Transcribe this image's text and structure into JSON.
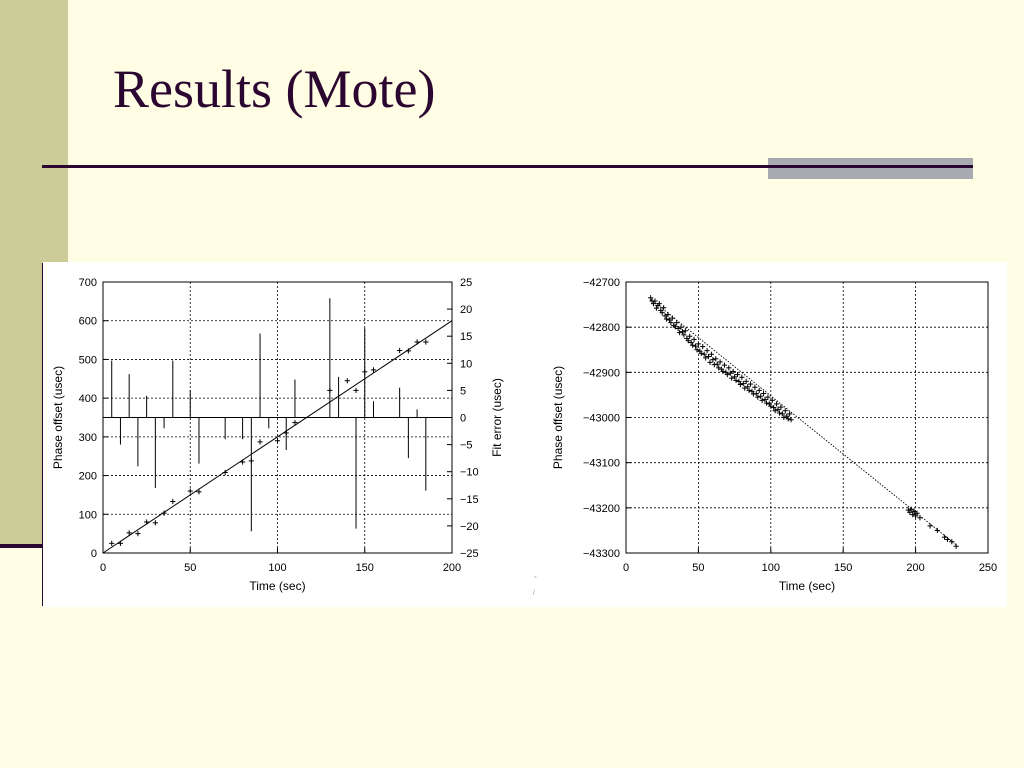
{
  "slide": {
    "title": "Results (Mote)",
    "colors": {
      "background": "#FFFDE3",
      "sidebar": "#CCCC99",
      "title_text": "#2A0630",
      "rule": "#2A0630",
      "accent": "#A9A9B2"
    }
  },
  "chart_data": [
    {
      "type": "scatter",
      "xlabel": "Time (sec)",
      "ylabel": "Phase offset (usec)",
      "y2label": "Fit error (usec)",
      "xlim": [
        0,
        200
      ],
      "ylim": [
        0,
        700
      ],
      "y2lim": [
        -25,
        25
      ],
      "xticks": [
        0,
        50,
        100,
        150,
        200
      ],
      "yticks": [
        0,
        100,
        200,
        300,
        400,
        500,
        600,
        700
      ],
      "y2ticks": [
        -25,
        -20,
        -15,
        -10,
        -5,
        0,
        5,
        10,
        15,
        20,
        25
      ],
      "grid": true,
      "legend": "none",
      "series": [
        {
          "kind": "points",
          "points": [
            [
              5,
              25
            ],
            [
              10,
              25
            ],
            [
              15,
              52
            ],
            [
              20,
              50
            ],
            [
              25,
              80
            ],
            [
              30,
              78
            ],
            [
              35,
              103
            ],
            [
              40,
              133
            ],
            [
              50,
              160
            ],
            [
              55,
              158
            ],
            [
              70,
              208
            ],
            [
              80,
              235
            ],
            [
              85,
              238
            ],
            [
              90,
              287
            ],
            [
              100,
              290
            ],
            [
              105,
              310
            ],
            [
              110,
              337
            ],
            [
              130,
              420
            ],
            [
              140,
              445
            ],
            [
              145,
              420
            ],
            [
              150,
              468
            ],
            [
              155,
              473
            ],
            [
              170,
              523
            ],
            [
              175,
              522
            ],
            [
              180,
              545
            ],
            [
              185,
              545
            ]
          ]
        },
        {
          "kind": "fit-line",
          "points": [
            [
              0,
              0
            ],
            [
              200,
              600
            ]
          ]
        },
        {
          "kind": "error-impulses",
          "axis": "y2",
          "points": [
            [
              5,
              10.5
            ],
            [
              10,
              -5
            ],
            [
              15,
              8
            ],
            [
              20,
              -9
            ],
            [
              25,
              4
            ],
            [
              30,
              -13
            ],
            [
              35,
              -2
            ],
            [
              40,
              10.5
            ],
            [
              50,
              5
            ],
            [
              55,
              -8.5
            ],
            [
              70,
              -4
            ],
            [
              80,
              -4
            ],
            [
              85,
              -21
            ],
            [
              90,
              15.5
            ],
            [
              95,
              -2
            ],
            [
              105,
              -6
            ],
            [
              110,
              7
            ],
            [
              130,
              22
            ],
            [
              135,
              7.5
            ],
            [
              145,
              -20.5
            ],
            [
              150,
              16.5
            ],
            [
              155,
              3
            ],
            [
              170,
              5.5
            ],
            [
              175,
              -7.5
            ],
            [
              180,
              1.5
            ],
            [
              185,
              -13.5
            ]
          ]
        }
      ]
    },
    {
      "type": "scatter",
      "xlabel": "Time (sec)",
      "ylabel": "Phase offset (usec)",
      "xlim": [
        0,
        250
      ],
      "ylim": [
        -43300,
        -42700
      ],
      "xticks": [
        0,
        50,
        100,
        150,
        200,
        250
      ],
      "yticks": [
        -43300,
        -43200,
        -43100,
        -43000,
        -42900,
        -42800,
        -42700
      ],
      "grid": true,
      "legend": "none",
      "series": [
        {
          "kind": "points",
          "points": [
            [
              17,
              -42735
            ],
            [
              18,
              -42742
            ],
            [
              19,
              -42748
            ],
            [
              20,
              -42742
            ],
            [
              21,
              -42758
            ],
            [
              22,
              -42752
            ],
            [
              23,
              -42748
            ],
            [
              24,
              -42763
            ],
            [
              25,
              -42768
            ],
            [
              26,
              -42757
            ],
            [
              27,
              -42775
            ],
            [
              28,
              -42782
            ],
            [
              29,
              -42772
            ],
            [
              30,
              -42784
            ],
            [
              31,
              -42790
            ],
            [
              32,
              -42780
            ],
            [
              33,
              -42796
            ],
            [
              34,
              -42799
            ],
            [
              35,
              -42790
            ],
            [
              36,
              -42803
            ],
            [
              37,
              -42812
            ],
            [
              38,
              -42800
            ],
            [
              39,
              -42810
            ],
            [
              40,
              -42817
            ],
            [
              41,
              -42808
            ],
            [
              42,
              -42825
            ],
            [
              43,
              -42830
            ],
            [
              44,
              -42820
            ],
            [
              45,
              -42834
            ],
            [
              46,
              -42840
            ],
            [
              47,
              -42827
            ],
            [
              48,
              -42842
            ],
            [
              49,
              -42850
            ],
            [
              50,
              -42837
            ],
            [
              51,
              -42853
            ],
            [
              52,
              -42858
            ],
            [
              53,
              -42843
            ],
            [
              54,
              -42860
            ],
            [
              55,
              -42868
            ],
            [
              56,
              -42852
            ],
            [
              57,
              -42865
            ],
            [
              58,
              -42878
            ],
            [
              59,
              -42860
            ],
            [
              60,
              -42872
            ],
            [
              61,
              -42883
            ],
            [
              62,
              -42870
            ],
            [
              63,
              -42882
            ],
            [
              64,
              -42890
            ],
            [
              65,
              -42877
            ],
            [
              66,
              -42893
            ],
            [
              67,
              -42898
            ],
            [
              68,
              -42884
            ],
            [
              69,
              -42900
            ],
            [
              70,
              -42905
            ],
            [
              71,
              -42890
            ],
            [
              72,
              -42902
            ],
            [
              73,
              -42913
            ],
            [
              74,
              -42898
            ],
            [
              75,
              -42910
            ],
            [
              76,
              -42918
            ],
            [
              77,
              -42905
            ],
            [
              78,
              -42920
            ],
            [
              79,
              -42927
            ],
            [
              80,
              -42911
            ],
            [
              81,
              -42925
            ],
            [
              82,
              -42935
            ],
            [
              83,
              -42920
            ],
            [
              84,
              -42932
            ],
            [
              85,
              -42940
            ],
            [
              86,
              -42926
            ],
            [
              87,
              -42942
            ],
            [
              88,
              -42948
            ],
            [
              89,
              -42933
            ],
            [
              90,
              -42947
            ],
            [
              91,
              -42955
            ],
            [
              92,
              -42940
            ],
            [
              93,
              -42953
            ],
            [
              94,
              -42962
            ],
            [
              95,
              -42947
            ],
            [
              96,
              -42960
            ],
            [
              97,
              -42968
            ],
            [
              98,
              -42955
            ],
            [
              99,
              -42970
            ],
            [
              100,
              -42975
            ],
            [
              101,
              -42962
            ],
            [
              102,
              -42978
            ],
            [
              103,
              -42985
            ],
            [
              104,
              -42970
            ],
            [
              105,
              -42982
            ],
            [
              106,
              -42990
            ],
            [
              107,
              -42977
            ],
            [
              108,
              -42992
            ],
            [
              109,
              -43000
            ],
            [
              110,
              -42985
            ],
            [
              111,
              -42997
            ],
            [
              112,
              -43003
            ],
            [
              113,
              -42992
            ],
            [
              114,
              -43005
            ],
            [
              195,
              -43205
            ],
            [
              196,
              -43210
            ],
            [
              197,
              -43203
            ],
            [
              198,
              -43215
            ],
            [
              199,
              -43208
            ],
            [
              200,
              -43218
            ],
            [
              201,
              -43212
            ],
            [
              203,
              -43222
            ],
            [
              210,
              -43240
            ],
            [
              215,
              -43250
            ],
            [
              220,
              -43265
            ],
            [
              222,
              -43270
            ],
            [
              225,
              -43275
            ],
            [
              228,
              -43285
            ]
          ]
        },
        {
          "kind": "fit-line",
          "points": [
            [
              17,
              -42738
            ],
            [
              228,
              -43282
            ]
          ]
        }
      ]
    }
  ]
}
